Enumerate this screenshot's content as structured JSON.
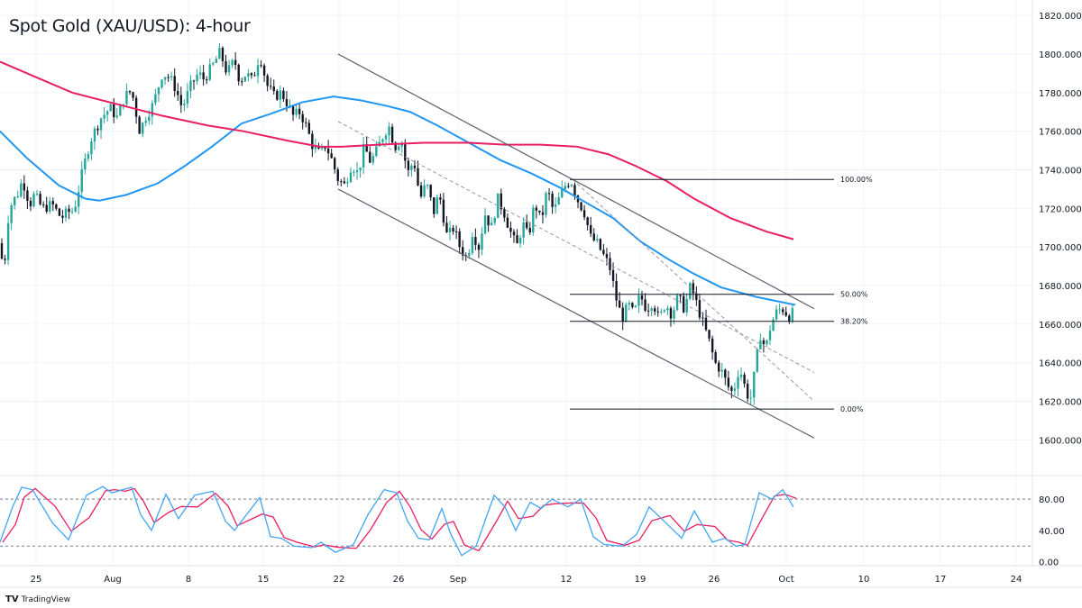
{
  "title": "Spot Gold (XAU/USD): 4-hour",
  "brand": {
    "logo": "TV",
    "label": "TradingView"
  },
  "colors": {
    "up": "#26a69a",
    "down": "#131722",
    "ma_fast": "#2196f3",
    "ma_slow": "#e91e63",
    "stoch_k": "#42a5f5",
    "stoch_d": "#e91e63",
    "grid": "#f0f3fa",
    "line": "#131722"
  },
  "chart_data": {
    "type": "candlestick",
    "y_axis": {
      "ticks": [
        "1820.000",
        "1800.000",
        "1780.000",
        "1760.000",
        "1740.000",
        "1720.000",
        "1700.000",
        "1680.000",
        "1660.000",
        "1640.000",
        "1620.000",
        "1600.000"
      ],
      "ylim": [
        1582,
        1828
      ]
    },
    "osc_axis": {
      "ticks": [
        "80.00",
        "40.00",
        "0.00"
      ],
      "ylim": [
        -5,
        110
      ]
    },
    "x_axis": {
      "ticks": [
        "25",
        "Aug",
        "8",
        "15",
        "22",
        "26",
        "Sep",
        "12",
        "19",
        "26",
        "Oct",
        "10",
        "17",
        "24"
      ]
    },
    "fib_levels": [
      {
        "label": "100.00%",
        "value": 1735.0
      },
      {
        "label": "50.00%",
        "value": 1675.5
      },
      {
        "label": "38.20%",
        "value": 1661.5
      },
      {
        "label": "0.00%",
        "value": 1616.0
      }
    ],
    "ohlc_waypoints": [
      [
        1702,
        0
      ],
      [
        1686,
        4
      ],
      [
        1720,
        10
      ],
      [
        1728,
        20
      ],
      [
        1735,
        25
      ],
      [
        1722,
        33
      ],
      [
        1727,
        38
      ],
      [
        1720,
        47
      ],
      [
        1722,
        58
      ],
      [
        1715,
        68
      ],
      [
        1718,
        75
      ],
      [
        1719,
        82
      ],
      [
        1740,
        92
      ],
      [
        1755,
        100
      ],
      [
        1767,
        112
      ],
      [
        1772,
        122
      ],
      [
        1767,
        130
      ],
      [
        1778,
        138
      ],
      [
        1781,
        146
      ],
      [
        1760,
        155
      ],
      [
        1768,
        162
      ],
      [
        1774,
        170
      ],
      [
        1790,
        180
      ],
      [
        1788,
        188
      ],
      [
        1782,
        195
      ],
      [
        1772,
        202
      ],
      [
        1784,
        212
      ],
      [
        1790,
        220
      ],
      [
        1787,
        226
      ],
      [
        1794,
        236
      ],
      [
        1801,
        244
      ],
      [
        1790,
        252
      ],
      [
        1797,
        260
      ],
      [
        1786,
        266
      ],
      [
        1790,
        273
      ],
      [
        1786,
        280
      ],
      [
        1800,
        288
      ],
      [
        1784,
        296
      ],
      [
        1778,
        304
      ],
      [
        1780,
        312
      ],
      [
        1775,
        318
      ],
      [
        1768,
        325
      ],
      [
        1770,
        333
      ],
      [
        1762,
        340
      ],
      [
        1752,
        347
      ],
      [
        1748,
        355
      ],
      [
        1753,
        361
      ],
      [
        1745,
        368
      ],
      [
        1735,
        375
      ],
      [
        1732,
        382
      ],
      [
        1743,
        390
      ],
      [
        1738,
        397
      ],
      [
        1752,
        404
      ],
      [
        1744,
        411
      ],
      [
        1750,
        418
      ],
      [
        1758,
        425
      ],
      [
        1763,
        431
      ],
      [
        1752,
        438
      ],
      [
        1756,
        445
      ],
      [
        1738,
        452
      ],
      [
        1745,
        459
      ],
      [
        1725,
        466
      ],
      [
        1733,
        473
      ],
      [
        1718,
        481
      ],
      [
        1728,
        487
      ],
      [
        1705,
        496
      ],
      [
        1710,
        503
      ],
      [
        1700,
        510
      ],
      [
        1694,
        518
      ],
      [
        1708,
        524
      ],
      [
        1700,
        531
      ],
      [
        1717,
        538
      ],
      [
        1710,
        545
      ],
      [
        1725,
        552
      ],
      [
        1718,
        559
      ],
      [
        1708,
        566
      ],
      [
        1700,
        573
      ],
      [
        1712,
        580
      ],
      [
        1705,
        586
      ],
      [
        1723,
        593
      ],
      [
        1713,
        600
      ],
      [
        1730,
        607
      ],
      [
        1718,
        614
      ],
      [
        1725,
        620
      ],
      [
        1732,
        627
      ],
      [
        1735,
        633
      ],
      [
        1725,
        640
      ],
      [
        1718,
        648
      ],
      [
        1705,
        655
      ],
      [
        1702,
        662
      ],
      [
        1695,
        670
      ],
      [
        1690,
        676
      ],
      [
        1672,
        684
      ],
      [
        1663,
        690
      ],
      [
        1670,
        697
      ],
      [
        1665,
        703
      ],
      [
        1675,
        710
      ],
      [
        1668,
        717
      ],
      [
        1672,
        724
      ],
      [
        1662,
        731
      ],
      [
        1671,
        738
      ],
      [
        1665,
        745
      ],
      [
        1674,
        752
      ],
      [
        1668,
        759
      ],
      [
        1680,
        766
      ],
      [
        1670,
        773
      ],
      [
        1660,
        780
      ],
      [
        1652,
        786
      ],
      [
        1640,
        793
      ],
      [
        1636,
        800
      ],
      [
        1628,
        807
      ],
      [
        1624,
        813
      ],
      [
        1638,
        820
      ],
      [
        1626,
        827
      ],
      [
        1620,
        832
      ],
      [
        1638,
        838
      ],
      [
        1655,
        843
      ],
      [
        1647,
        849
      ],
      [
        1660,
        855
      ],
      [
        1667,
        862
      ],
      [
        1668,
        868
      ],
      [
        1664,
        875
      ],
      [
        1666,
        880
      ]
    ],
    "moving_averages": [
      {
        "name": "MA fast",
        "color": "#2196f3",
        "points": [
          [
            1760,
            0
          ],
          [
            1746,
            30
          ],
          [
            1732,
            65
          ],
          [
            1725,
            95
          ],
          [
            1724,
            110
          ],
          [
            1727,
            140
          ],
          [
            1733,
            175
          ],
          [
            1742,
            205
          ],
          [
            1752,
            235
          ],
          [
            1764,
            268
          ],
          [
            1769,
            300
          ],
          [
            1775,
            335
          ],
          [
            1778,
            370
          ],
          [
            1776,
            400
          ],
          [
            1773,
            430
          ],
          [
            1770,
            455
          ],
          [
            1763,
            485
          ],
          [
            1754,
            520
          ],
          [
            1745,
            555
          ],
          [
            1738,
            590
          ],
          [
            1731,
            620
          ],
          [
            1723,
            650
          ],
          [
            1715,
            680
          ],
          [
            1703,
            710
          ],
          [
            1694,
            740
          ],
          [
            1686,
            770
          ],
          [
            1679,
            800
          ],
          [
            1674,
            840
          ],
          [
            1670,
            882
          ]
        ]
      },
      {
        "name": "MA slow",
        "color": "#e91e63",
        "points": [
          [
            1796,
            0
          ],
          [
            1788,
            40
          ],
          [
            1780,
            80
          ],
          [
            1774,
            130
          ],
          [
            1768,
            180
          ],
          [
            1763,
            230
          ],
          [
            1760,
            270
          ],
          [
            1755,
            320
          ],
          [
            1752,
            355
          ],
          [
            1752,
            380
          ],
          [
            1753,
            420
          ],
          [
            1754,
            470
          ],
          [
            1754,
            520
          ],
          [
            1753,
            560
          ],
          [
            1753,
            600
          ],
          [
            1752,
            640
          ],
          [
            1748,
            675
          ],
          [
            1742,
            705
          ],
          [
            1734,
            740
          ],
          [
            1725,
            770
          ],
          [
            1715,
            810
          ],
          [
            1708,
            850
          ],
          [
            1704,
            880
          ]
        ]
      }
    ],
    "channel": [
      {
        "from": [
          1800,
          375
        ],
        "to": [
          1668,
          903
        ]
      },
      {
        "from": [
          1730,
          375
        ],
        "to": [
          1601,
          903
        ]
      }
    ],
    "dashed_midline": {
      "from": [
        1765,
        375
      ],
      "to": [
        1635,
        903
      ]
    },
    "dashed_projection": {
      "from": [
        1735,
        635
      ],
      "to": [
        1620,
        903
      ]
    },
    "stochastic": {
      "levels": [
        80,
        20
      ],
      "k": [
        [
          25,
          0
        ],
        [
          70,
          14
        ],
        [
          95,
          24
        ],
        [
          92,
          36
        ],
        [
          50,
          58
        ],
        [
          28,
          76
        ],
        [
          85,
          96
        ],
        [
          96,
          114
        ],
        [
          88,
          124
        ],
        [
          92,
          136
        ],
        [
          95,
          146
        ],
        [
          60,
          156
        ],
        [
          40,
          168
        ],
        [
          86,
          184
        ],
        [
          55,
          198
        ],
        [
          85,
          216
        ],
        [
          90,
          236
        ],
        [
          52,
          250
        ],
        [
          40,
          260
        ],
        [
          82,
          288
        ],
        [
          32,
          300
        ],
        [
          30,
          312
        ],
        [
          20,
          326
        ],
        [
          18,
          346
        ],
        [
          25,
          356
        ],
        [
          12,
          372
        ],
        [
          22,
          392
        ],
        [
          60,
          408
        ],
        [
          92,
          426
        ],
        [
          88,
          440
        ],
        [
          52,
          452
        ],
        [
          30,
          464
        ],
        [
          28,
          476
        ],
        [
          68,
          490
        ],
        [
          35,
          500
        ],
        [
          8,
          512
        ],
        [
          20,
          528
        ],
        [
          85,
          548
        ],
        [
          70,
          560
        ],
        [
          40,
          572
        ],
        [
          76,
          588
        ],
        [
          68,
          600
        ],
        [
          80,
          612
        ],
        [
          70,
          630
        ],
        [
          80,
          644
        ],
        [
          32,
          658
        ],
        [
          22,
          670
        ],
        [
          20,
          690
        ],
        [
          35,
          706
        ],
        [
          70,
          720
        ],
        [
          48,
          740
        ],
        [
          30,
          756
        ],
        [
          65,
          770
        ],
        [
          25,
          790
        ],
        [
          30,
          804
        ],
        [
          20,
          816
        ],
        [
          22,
          826
        ],
        [
          88,
          842
        ],
        [
          80,
          856
        ],
        [
          92,
          868
        ],
        [
          70,
          880
        ]
      ]
    }
  }
}
